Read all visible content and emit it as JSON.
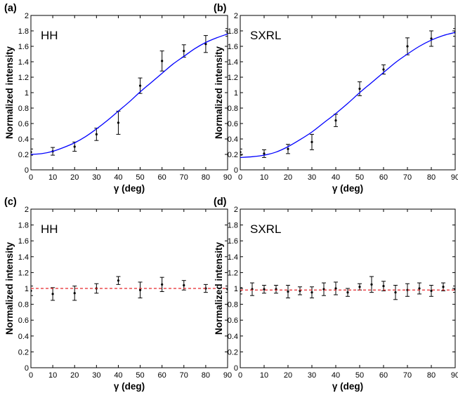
{
  "chart_data": [
    {
      "type": "scatter",
      "panel_label": "(a)",
      "inset_label": "HH",
      "xlabel": "γ (deg)",
      "ylabel": "Normalized intensity",
      "xlim": [
        0,
        90
      ],
      "ylim": [
        0,
        2
      ],
      "xticks": [
        "0",
        "10",
        "20",
        "30",
        "40",
        "50",
        "60",
        "70",
        "80",
        "90"
      ],
      "yticks": [
        "0",
        "0.2",
        "0.4",
        "0.6",
        "0.8",
        "1",
        "1.2",
        "1.4",
        "1.6",
        "1.8",
        "2"
      ],
      "grid": false,
      "series": [
        {
          "kind": "points_with_errorbars",
          "color": "#000000",
          "x": [
            0,
            10,
            20,
            30,
            40,
            50,
            60,
            70,
            80,
            90
          ],
          "y": [
            0.23,
            0.24,
            0.3,
            0.46,
            0.61,
            1.09,
            1.41,
            1.54,
            1.63,
            1.78
          ],
          "err": [
            0.04,
            0.05,
            0.06,
            0.08,
            0.15,
            0.1,
            0.13,
            0.08,
            0.11,
            0.05
          ]
        },
        {
          "kind": "line",
          "color": "#0000ff",
          "x": [
            0,
            5,
            10,
            15,
            20,
            25,
            30,
            35,
            40,
            45,
            50,
            55,
            60,
            65,
            70,
            75,
            80,
            85,
            90
          ],
          "y": [
            0.2,
            0.21,
            0.24,
            0.29,
            0.35,
            0.43,
            0.53,
            0.64,
            0.76,
            0.88,
            1.01,
            1.13,
            1.25,
            1.37,
            1.47,
            1.57,
            1.65,
            1.71,
            1.76
          ]
        }
      ]
    },
    {
      "type": "scatter",
      "panel_label": "(b)",
      "inset_label": "SXRL",
      "xlabel": "γ (deg)",
      "ylabel": "Normalized intensity",
      "xlim": [
        0,
        90
      ],
      "ylim": [
        0,
        2
      ],
      "xticks": [
        "0",
        "10",
        "20",
        "30",
        "40",
        "50",
        "60",
        "70",
        "80",
        "90"
      ],
      "yticks": [
        "0",
        "0.2",
        "0.4",
        "0.6",
        "0.8",
        "1",
        "1.2",
        "1.4",
        "1.6",
        "1.8",
        "2"
      ],
      "grid": false,
      "series": [
        {
          "kind": "points_with_errorbars",
          "color": "#000000",
          "x": [
            0,
            10,
            20,
            30,
            40,
            50,
            60,
            70,
            80,
            90
          ],
          "y": [
            0.23,
            0.21,
            0.27,
            0.36,
            0.64,
            1.05,
            1.3,
            1.6,
            1.7,
            1.78
          ],
          "err": [
            0.04,
            0.05,
            0.06,
            0.1,
            0.08,
            0.09,
            0.06,
            0.11,
            0.1,
            0.05
          ]
        },
        {
          "kind": "line",
          "color": "#0000ff",
          "x": [
            0,
            5,
            10,
            15,
            20,
            25,
            30,
            35,
            40,
            45,
            50,
            55,
            60,
            65,
            70,
            75,
            80,
            85,
            90
          ],
          "y": [
            0.16,
            0.17,
            0.19,
            0.23,
            0.3,
            0.39,
            0.49,
            0.61,
            0.73,
            0.86,
            1.0,
            1.13,
            1.26,
            1.39,
            1.5,
            1.6,
            1.68,
            1.74,
            1.78
          ]
        }
      ]
    },
    {
      "type": "scatter",
      "panel_label": "(c)",
      "inset_label": "HH",
      "xlabel": "γ (deg)",
      "ylabel": "Normalized intensity",
      "xlim": [
        0,
        90
      ],
      "ylim": [
        0,
        2
      ],
      "xticks": [
        "0",
        "10",
        "20",
        "30",
        "40",
        "50",
        "60",
        "70",
        "80",
        "90"
      ],
      "yticks": [
        "0",
        "0.2",
        "0.4",
        "0.6",
        "0.8",
        "1",
        "1.2",
        "1.4",
        "1.6",
        "1.8",
        "2"
      ],
      "grid": false,
      "series": [
        {
          "kind": "points_with_errorbars",
          "color": "#000000",
          "x": [
            0,
            10,
            20,
            30,
            40,
            50,
            60,
            70,
            80,
            90
          ],
          "y": [
            0.97,
            0.93,
            0.94,
            1.0,
            1.1,
            0.98,
            1.05,
            1.04,
            1.0,
            0.99
          ],
          "err": [
            0.06,
            0.08,
            0.09,
            0.06,
            0.05,
            0.1,
            0.09,
            0.06,
            0.05,
            0.04
          ]
        },
        {
          "kind": "hline",
          "style": "dashed",
          "color": "#e8262a",
          "y": 1.0
        }
      ]
    },
    {
      "type": "scatter",
      "panel_label": "(d)",
      "inset_label": "SXRL",
      "xlabel": "γ (deg)",
      "ylabel": "Normalized intensity",
      "xlim": [
        0,
        90
      ],
      "ylim": [
        0,
        2
      ],
      "xticks": [
        "0",
        "10",
        "20",
        "30",
        "40",
        "50",
        "60",
        "70",
        "80",
        "90"
      ],
      "yticks": [
        "0",
        "0.2",
        "0.4",
        "0.6",
        "0.8",
        "1",
        "1.2",
        "1.4",
        "1.6",
        "1.8",
        "2"
      ],
      "grid": false,
      "series": [
        {
          "kind": "points_with_errorbars",
          "color": "#000000",
          "x": [
            0,
            5,
            10,
            15,
            20,
            25,
            30,
            35,
            40,
            45,
            50,
            55,
            60,
            65,
            70,
            75,
            80,
            85,
            90
          ],
          "y": [
            0.97,
            0.99,
            0.99,
            0.99,
            0.96,
            0.97,
            0.95,
            0.99,
            1.0,
            0.95,
            1.02,
            1.05,
            1.03,
            0.95,
            0.98,
            1.0,
            0.97,
            1.02,
            0.99
          ],
          "err": [
            0.04,
            0.08,
            0.05,
            0.05,
            0.08,
            0.05,
            0.07,
            0.08,
            0.08,
            0.05,
            0.04,
            0.1,
            0.06,
            0.09,
            0.08,
            0.07,
            0.07,
            0.05,
            0.04
          ]
        },
        {
          "kind": "hline",
          "style": "dashed",
          "color": "#e8262a",
          "y": 0.98
        }
      ]
    }
  ]
}
